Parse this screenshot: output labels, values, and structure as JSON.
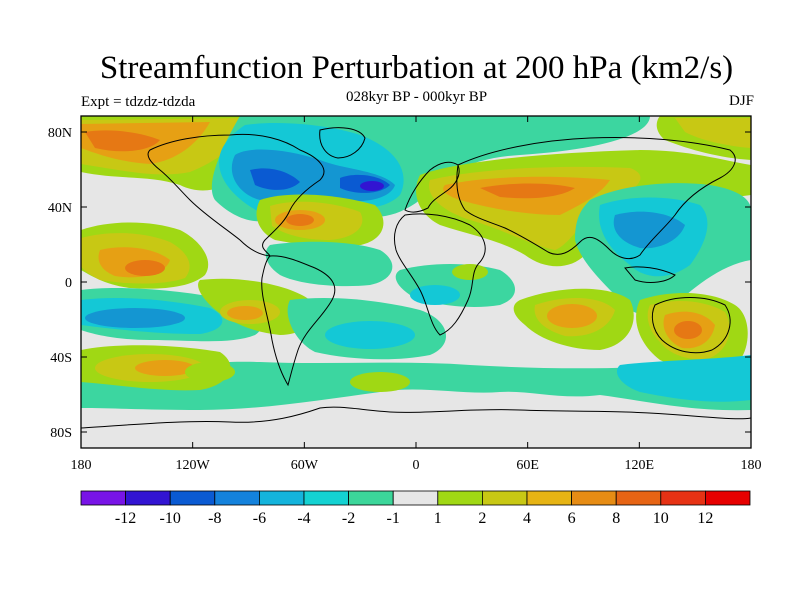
{
  "header": {
    "title": "Streamfunction Perturbation at 200 hPa (km2/s)",
    "subtitle": "028kyr BP - 000kyr BP",
    "left_label": "Expt = tdzdz-tdzda",
    "right_label": "DJF"
  },
  "colors": {
    "land_outline": "#000000",
    "neutral": "#e6e6e6",
    "neg_weak": "#3cd6a0",
    "neg_mid": "#14c8d6",
    "neg_strong": "#1496d2",
    "neg_stronger": "#0a5ad2",
    "pos_weak": "#a0d814",
    "pos_mid": "#c8c814",
    "pos_strong": "#e6a014",
    "pos_stronger": "#e67814"
  },
  "chart_data": {
    "type": "heatmap",
    "projection": "cylindrical-equidistant",
    "variable": "streamfunction perturbation",
    "units": "km2/s",
    "level": "200 hPa",
    "season": "DJF",
    "x_ticks": [
      "180",
      "120W",
      "60W",
      "0",
      "60E",
      "120E",
      "180"
    ],
    "y_ticks": [
      "80N",
      "40N",
      "0",
      "40S",
      "80S"
    ],
    "xlim": [
      -180,
      180
    ],
    "ylim": [
      -90,
      90
    ],
    "colorbar": {
      "levels": [
        "-12",
        "-10",
        "-8",
        "-6",
        "-4",
        "-2",
        "-1",
        "1",
        "2",
        "4",
        "6",
        "8",
        "10",
        "12"
      ],
      "colors": [
        "#7814e6",
        "#3214d2",
        "#0a5ad2",
        "#1482dc",
        "#14b4dc",
        "#14d2d2",
        "#3cd69a",
        "#e6e6e6",
        "#a0d814",
        "#c8c814",
        "#e6b414",
        "#e68c14",
        "#e66414",
        "#e63214",
        "#e60000"
      ]
    }
  }
}
